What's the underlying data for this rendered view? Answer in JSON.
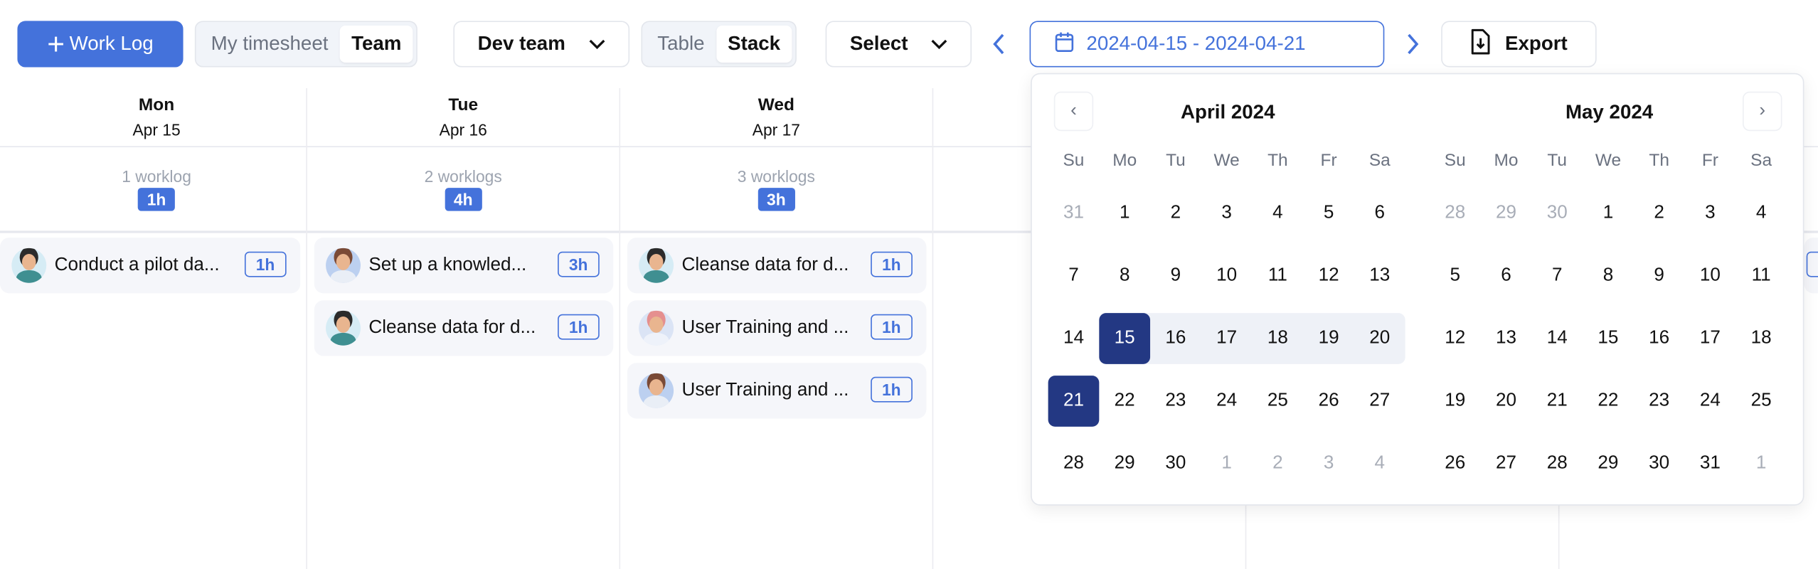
{
  "toolbar": {
    "add_worklog": "Work Log",
    "scope_tabs": [
      {
        "label": "My timesheet",
        "active": false
      },
      {
        "label": "Team",
        "active": true
      }
    ],
    "team_select": "Dev team",
    "view_tabs": [
      {
        "label": "Table",
        "active": false
      },
      {
        "label": "Stack",
        "active": true
      }
    ],
    "select_label": "Select",
    "date_range": "2024-04-15 - 2024-04-21",
    "export_label": "Export",
    "accent_color": "#4472db"
  },
  "days": [
    {
      "name": "Mon",
      "date": "Apr 15",
      "count": "1 worklog",
      "total": "1h",
      "items": [
        {
          "title": "Conduct a pilot da...",
          "hours": "1h",
          "avatar": "woman-dark-hair"
        }
      ]
    },
    {
      "name": "Tue",
      "date": "Apr 16",
      "count": "2 worklogs",
      "total": "4h",
      "items": [
        {
          "title": "Set up a knowled...",
          "hours": "3h",
          "avatar": "man-beard"
        },
        {
          "title": "Cleanse data for d...",
          "hours": "1h",
          "avatar": "woman-dark-hair"
        }
      ]
    },
    {
      "name": "Wed",
      "date": "Apr 17",
      "count": "3 worklogs",
      "total": "3h",
      "items": [
        {
          "title": "Cleanse data for d...",
          "hours": "1h",
          "avatar": "woman-dark-hair"
        },
        {
          "title": "User Training and ...",
          "hours": "1h",
          "avatar": "woman-pink-hair"
        },
        {
          "title": "User Training and ...",
          "hours": "1h",
          "avatar": "man-beard"
        }
      ]
    }
  ],
  "calendar": {
    "weekdays": [
      "Su",
      "Mo",
      "Tu",
      "We",
      "Th",
      "Fr",
      "Sa"
    ],
    "range_color": "#233883",
    "months": [
      {
        "title": "April 2024",
        "range_start": 15,
        "range_end": 21,
        "weeks": [
          [
            [
              31,
              1
            ],
            [
              1
            ],
            [
              2
            ],
            [
              3
            ],
            [
              4
            ],
            [
              5
            ],
            [
              6
            ]
          ],
          [
            [
              7
            ],
            [
              8
            ],
            [
              9
            ],
            [
              10
            ],
            [
              11
            ],
            [
              12
            ],
            [
              13
            ]
          ],
          [
            [
              14
            ],
            [
              15
            ],
            [
              16
            ],
            [
              17
            ],
            [
              18
            ],
            [
              19
            ],
            [
              20
            ]
          ],
          [
            [
              21
            ],
            [
              22
            ],
            [
              23
            ],
            [
              24
            ],
            [
              25
            ],
            [
              26
            ],
            [
              27
            ]
          ],
          [
            [
              28
            ],
            [
              29
            ],
            [
              30
            ],
            [
              1,
              1
            ],
            [
              2,
              1
            ],
            [
              3,
              1
            ],
            [
              4,
              1
            ]
          ]
        ]
      },
      {
        "title": "May 2024",
        "weeks": [
          [
            [
              28,
              1
            ],
            [
              29,
              1
            ],
            [
              30,
              1
            ],
            [
              1
            ],
            [
              2
            ],
            [
              3
            ],
            [
              4
            ]
          ],
          [
            [
              5
            ],
            [
              6
            ],
            [
              7
            ],
            [
              8
            ],
            [
              9
            ],
            [
              10
            ],
            [
              11
            ]
          ],
          [
            [
              12
            ],
            [
              13
            ],
            [
              14
            ],
            [
              15
            ],
            [
              16
            ],
            [
              17
            ],
            [
              18
            ]
          ],
          [
            [
              19
            ],
            [
              20
            ],
            [
              21
            ],
            [
              22
            ],
            [
              23
            ],
            [
              24
            ],
            [
              25
            ]
          ],
          [
            [
              26
            ],
            [
              27
            ],
            [
              28
            ],
            [
              29
            ],
            [
              30
            ],
            [
              31
            ],
            [
              1,
              1
            ]
          ]
        ]
      }
    ]
  }
}
